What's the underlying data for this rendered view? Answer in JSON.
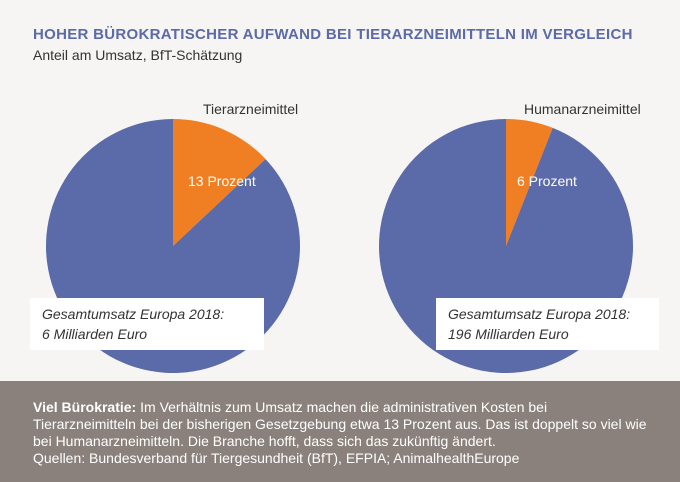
{
  "title": "HOHER BÜROKRATISCHER AUFWAND BEI TIERARZNEIMITTELN IM VERGLEICH",
  "subtitle": "Anteil am Umsatz, BfT-Schätzung",
  "colors": {
    "pie_main": "#5b6aa8",
    "pie_share": "#ef7f22",
    "title": "#5b6aa8",
    "footer_bg": "#8a817c"
  },
  "chart_data": [
    {
      "type": "pie",
      "name": "Tierarzneimittel",
      "slices": [
        {
          "label": "13 Prozent",
          "value": 13,
          "color": "#ef7f22"
        },
        {
          "label": "",
          "value": 87,
          "color": "#5b6aa8"
        }
      ],
      "total_line1": "Gesamtumsatz Europa 2018:",
      "total_line2": "6 Milliarden Euro"
    },
    {
      "type": "pie",
      "name": "Humanarzneimittel",
      "slices": [
        {
          "label": "6 Prozent",
          "value": 6,
          "color": "#ef7f22"
        },
        {
          "label": "",
          "value": 94,
          "color": "#5b6aa8"
        }
      ],
      "total_line1": "Gesamtumsatz Europa 2018:",
      "total_line2": "196 Milliarden Euro"
    }
  ],
  "footer": {
    "lead": "Viel Bürokratie:",
    "text": " Im Verhältnis zum Umsatz machen die administrativen Kosten bei Tierarzneimitteln bei der bisherigen Gesetzgebung etwa 13 Prozent aus. Das ist doppelt so viel wie bei Humanarzneimitteln. Die Branche hofft, dass sich das zukünftig ändert.",
    "sources": "Quellen: Bundesverband für Tiergesundheit (BfT), EFPIA; AnimalhealthEurope"
  }
}
